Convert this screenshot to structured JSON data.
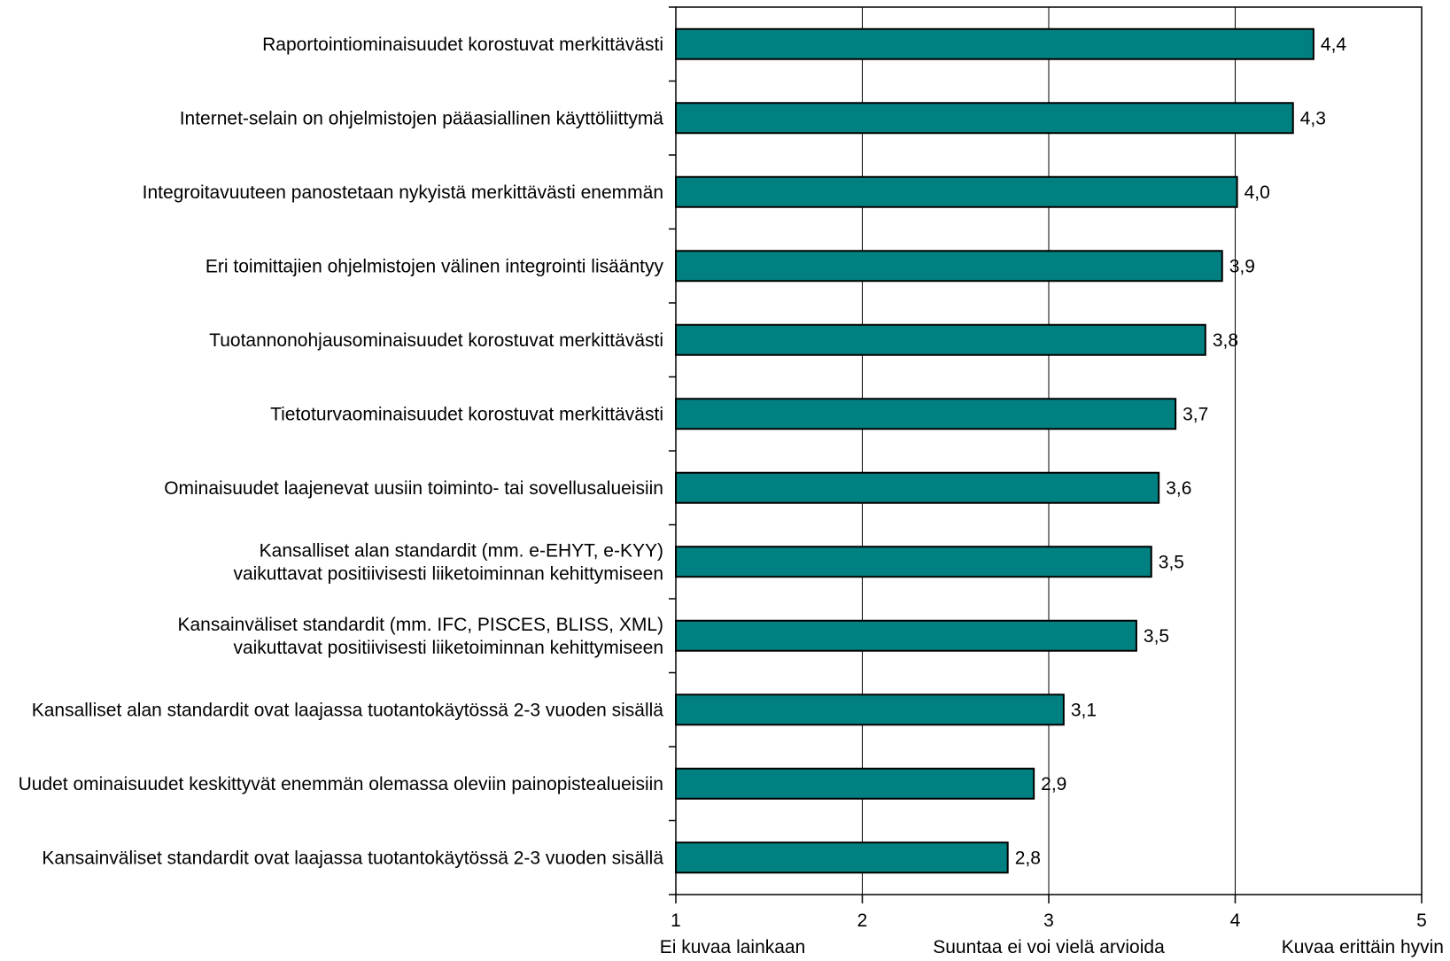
{
  "chart_data": {
    "type": "bar",
    "orientation": "horizontal",
    "categories": [
      [
        "Raportointiominaisuudet korostuvat merkittävästi"
      ],
      [
        "Internet-selain on ohjelmistojen pääasiallinen käyttöliittymä"
      ],
      [
        "Integroitavuuteen panostetaan nykyistä merkittävästi enemmän"
      ],
      [
        "Eri toimittajien ohjelmistojen välinen integrointi lisääntyy"
      ],
      [
        "Tuotannonohjausominaisuudet korostuvat merkittävästi"
      ],
      [
        "Tietoturvaominaisuudet korostuvat merkittävästi"
      ],
      [
        "Ominaisuudet laajenevat uusiin toiminto- tai sovellusalueisiin"
      ],
      [
        "Kansalliset alan standardit (mm. e-EHYT, e-KYY)",
        "vaikuttavat positiivisesti liiketoiminnan kehittymiseen"
      ],
      [
        "Kansainväliset standardit (mm. IFC, PISCES, BLISS, XML)",
        "vaikuttavat positiivisesti liiketoiminnan kehittymiseen"
      ],
      [
        "Kansalliset alan standardit ovat laajassa tuotantokäytössä 2-3 vuoden sisällä"
      ],
      [
        "Uudet ominaisuudet keskittyvät enemmän olemassa oleviin painopistealueisiin"
      ],
      [
        "Kansainväliset standardit ovat laajassa tuotantokäytössä 2-3 vuoden sisällä"
      ]
    ],
    "values": [
      4.42,
      4.31,
      4.01,
      3.93,
      3.84,
      3.68,
      3.59,
      3.55,
      3.47,
      3.08,
      2.92,
      2.78
    ],
    "value_labels": [
      "4,4",
      "4,3",
      "4,0",
      "3,9",
      "3,8",
      "3,7",
      "3,6",
      "3,5",
      "3,5",
      "3,1",
      "2,9",
      "2,8"
    ],
    "xlim": [
      1,
      5
    ],
    "xticks": [
      1,
      2,
      3,
      4,
      5
    ],
    "xtick_labels": [
      "1",
      "2",
      "3",
      "4",
      "5"
    ],
    "axis_descriptions": [
      {
        "at": 1,
        "text": "Ei kuvaa lainkaan"
      },
      {
        "at": 3,
        "text": "Suuntaa ei voi vielä arvioida"
      },
      {
        "at": 5,
        "text": "Kuvaa erittäin hyvin"
      }
    ],
    "grid": "vertical",
    "bar_color": "#008080",
    "title": "",
    "xlabel": "",
    "ylabel": ""
  }
}
